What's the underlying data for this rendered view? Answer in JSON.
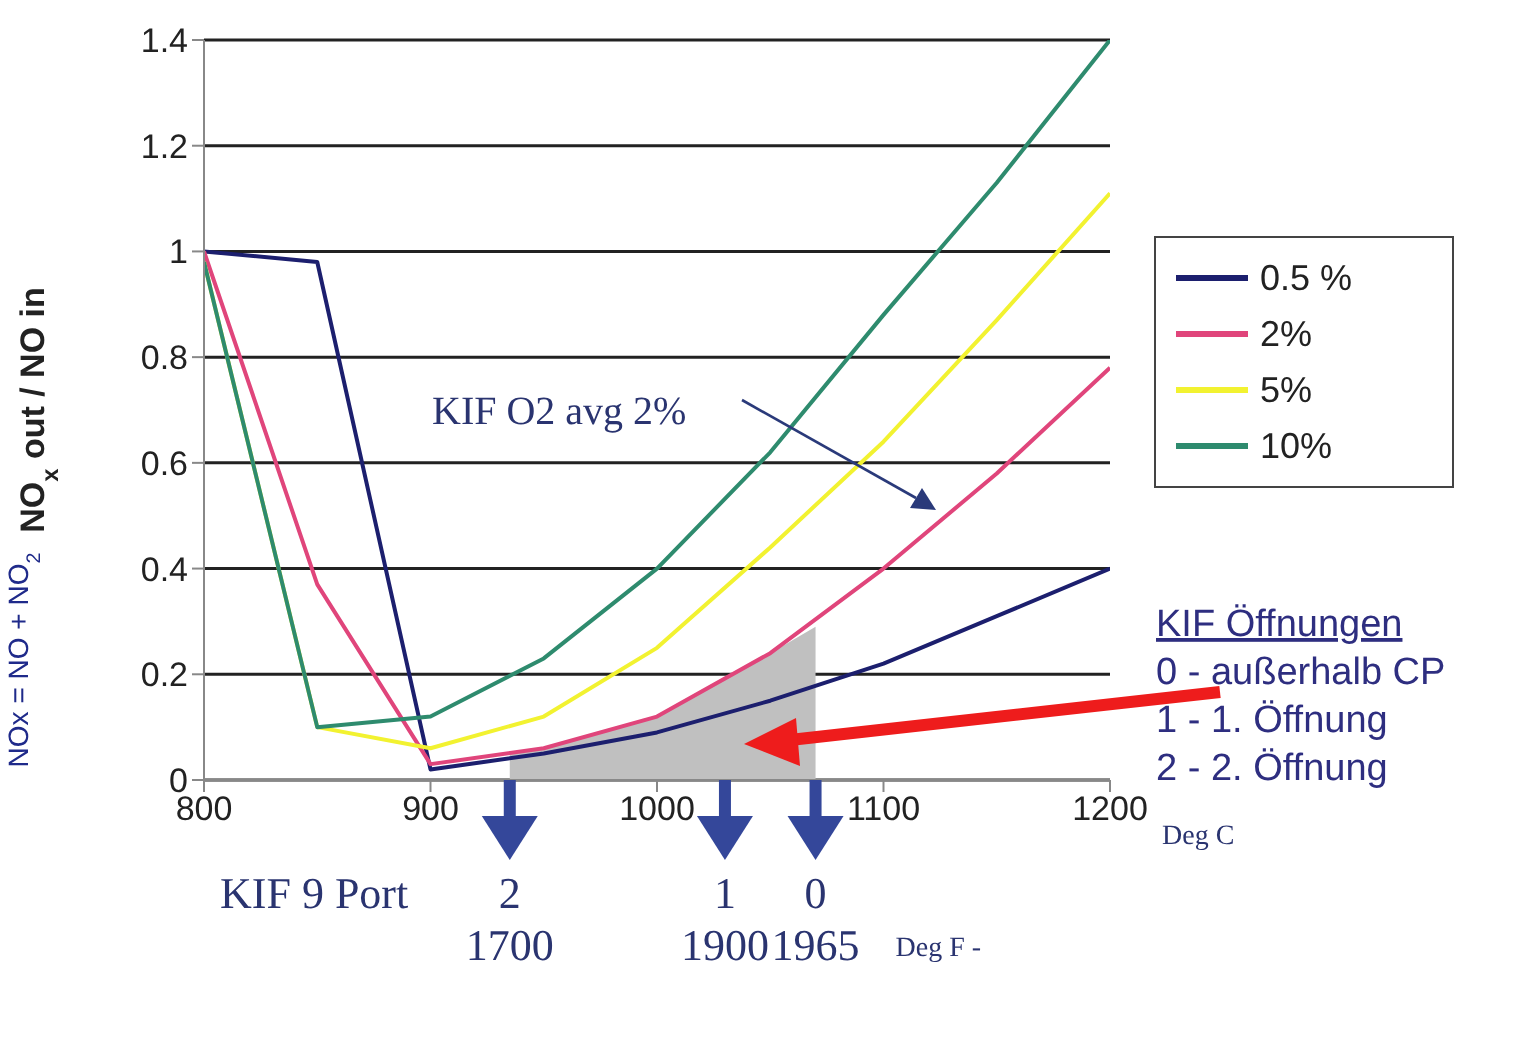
{
  "chart_data": {
    "type": "line",
    "xlabel": "Deg C",
    "ylabel": "NO$_{x}$ out / NO in",
    "x": [
      800,
      850,
      900,
      950,
      1000,
      1050,
      1100,
      1150,
      1200
    ],
    "xlim": [
      800,
      1200
    ],
    "xticks": [
      800,
      900,
      1000,
      1100,
      1200
    ],
    "ylim": [
      0,
      1.4
    ],
    "yticks": [
      0,
      0.2,
      0.4,
      0.6,
      0.8,
      1,
      1.2,
      1.4
    ],
    "grid": "y",
    "legend": "right",
    "marker": "none",
    "line_style": "solid",
    "series": [
      {
        "type": "area",
        "color": "#c0c0c0",
        "x": [
          935,
          950,
          1000,
          1050,
          1070
        ],
        "values": [
          0.05,
          0.06,
          0.12,
          0.24,
          0.29
        ]
      },
      {
        "name": "0.5 %",
        "color": "#1c1f6e",
        "values": [
          1.0,
          0.98,
          0.02,
          0.05,
          0.09,
          0.15,
          0.22,
          0.31,
          0.4
        ]
      },
      {
        "name": "2%",
        "color": "#e0457b",
        "values": [
          1.0,
          0.37,
          0.03,
          0.06,
          0.12,
          0.24,
          0.4,
          0.58,
          0.78
        ]
      },
      {
        "name": "5%",
        "color": "#f2f230",
        "values": [
          0.98,
          0.1,
          0.06,
          0.12,
          0.25,
          0.44,
          0.64,
          0.87,
          1.11
        ]
      },
      {
        "name": "10%",
        "color": "#2e8b6e",
        "values": [
          0.98,
          0.1,
          0.12,
          0.23,
          0.4,
          0.62,
          0.88,
          1.13,
          1.4
        ]
      }
    ],
    "annotations": [
      "KIF O2 avg 2%",
      "KIF Öffnungen",
      "0  - außerhalb CP",
      "1  - 1. Öffnung",
      "2  - 2. Öffnung",
      "NOx = NO + NO$_{2}$",
      "KIF 9 Port",
      {
        "text": "2",
        "x": 935,
        "y": 0
      },
      {
        "text": "1",
        "x": 1030,
        "y": 0
      },
      {
        "text": "0",
        "x": 1070,
        "y": 0
      },
      "1700",
      "1900",
      "1965",
      "Deg F -"
    ]
  }
}
